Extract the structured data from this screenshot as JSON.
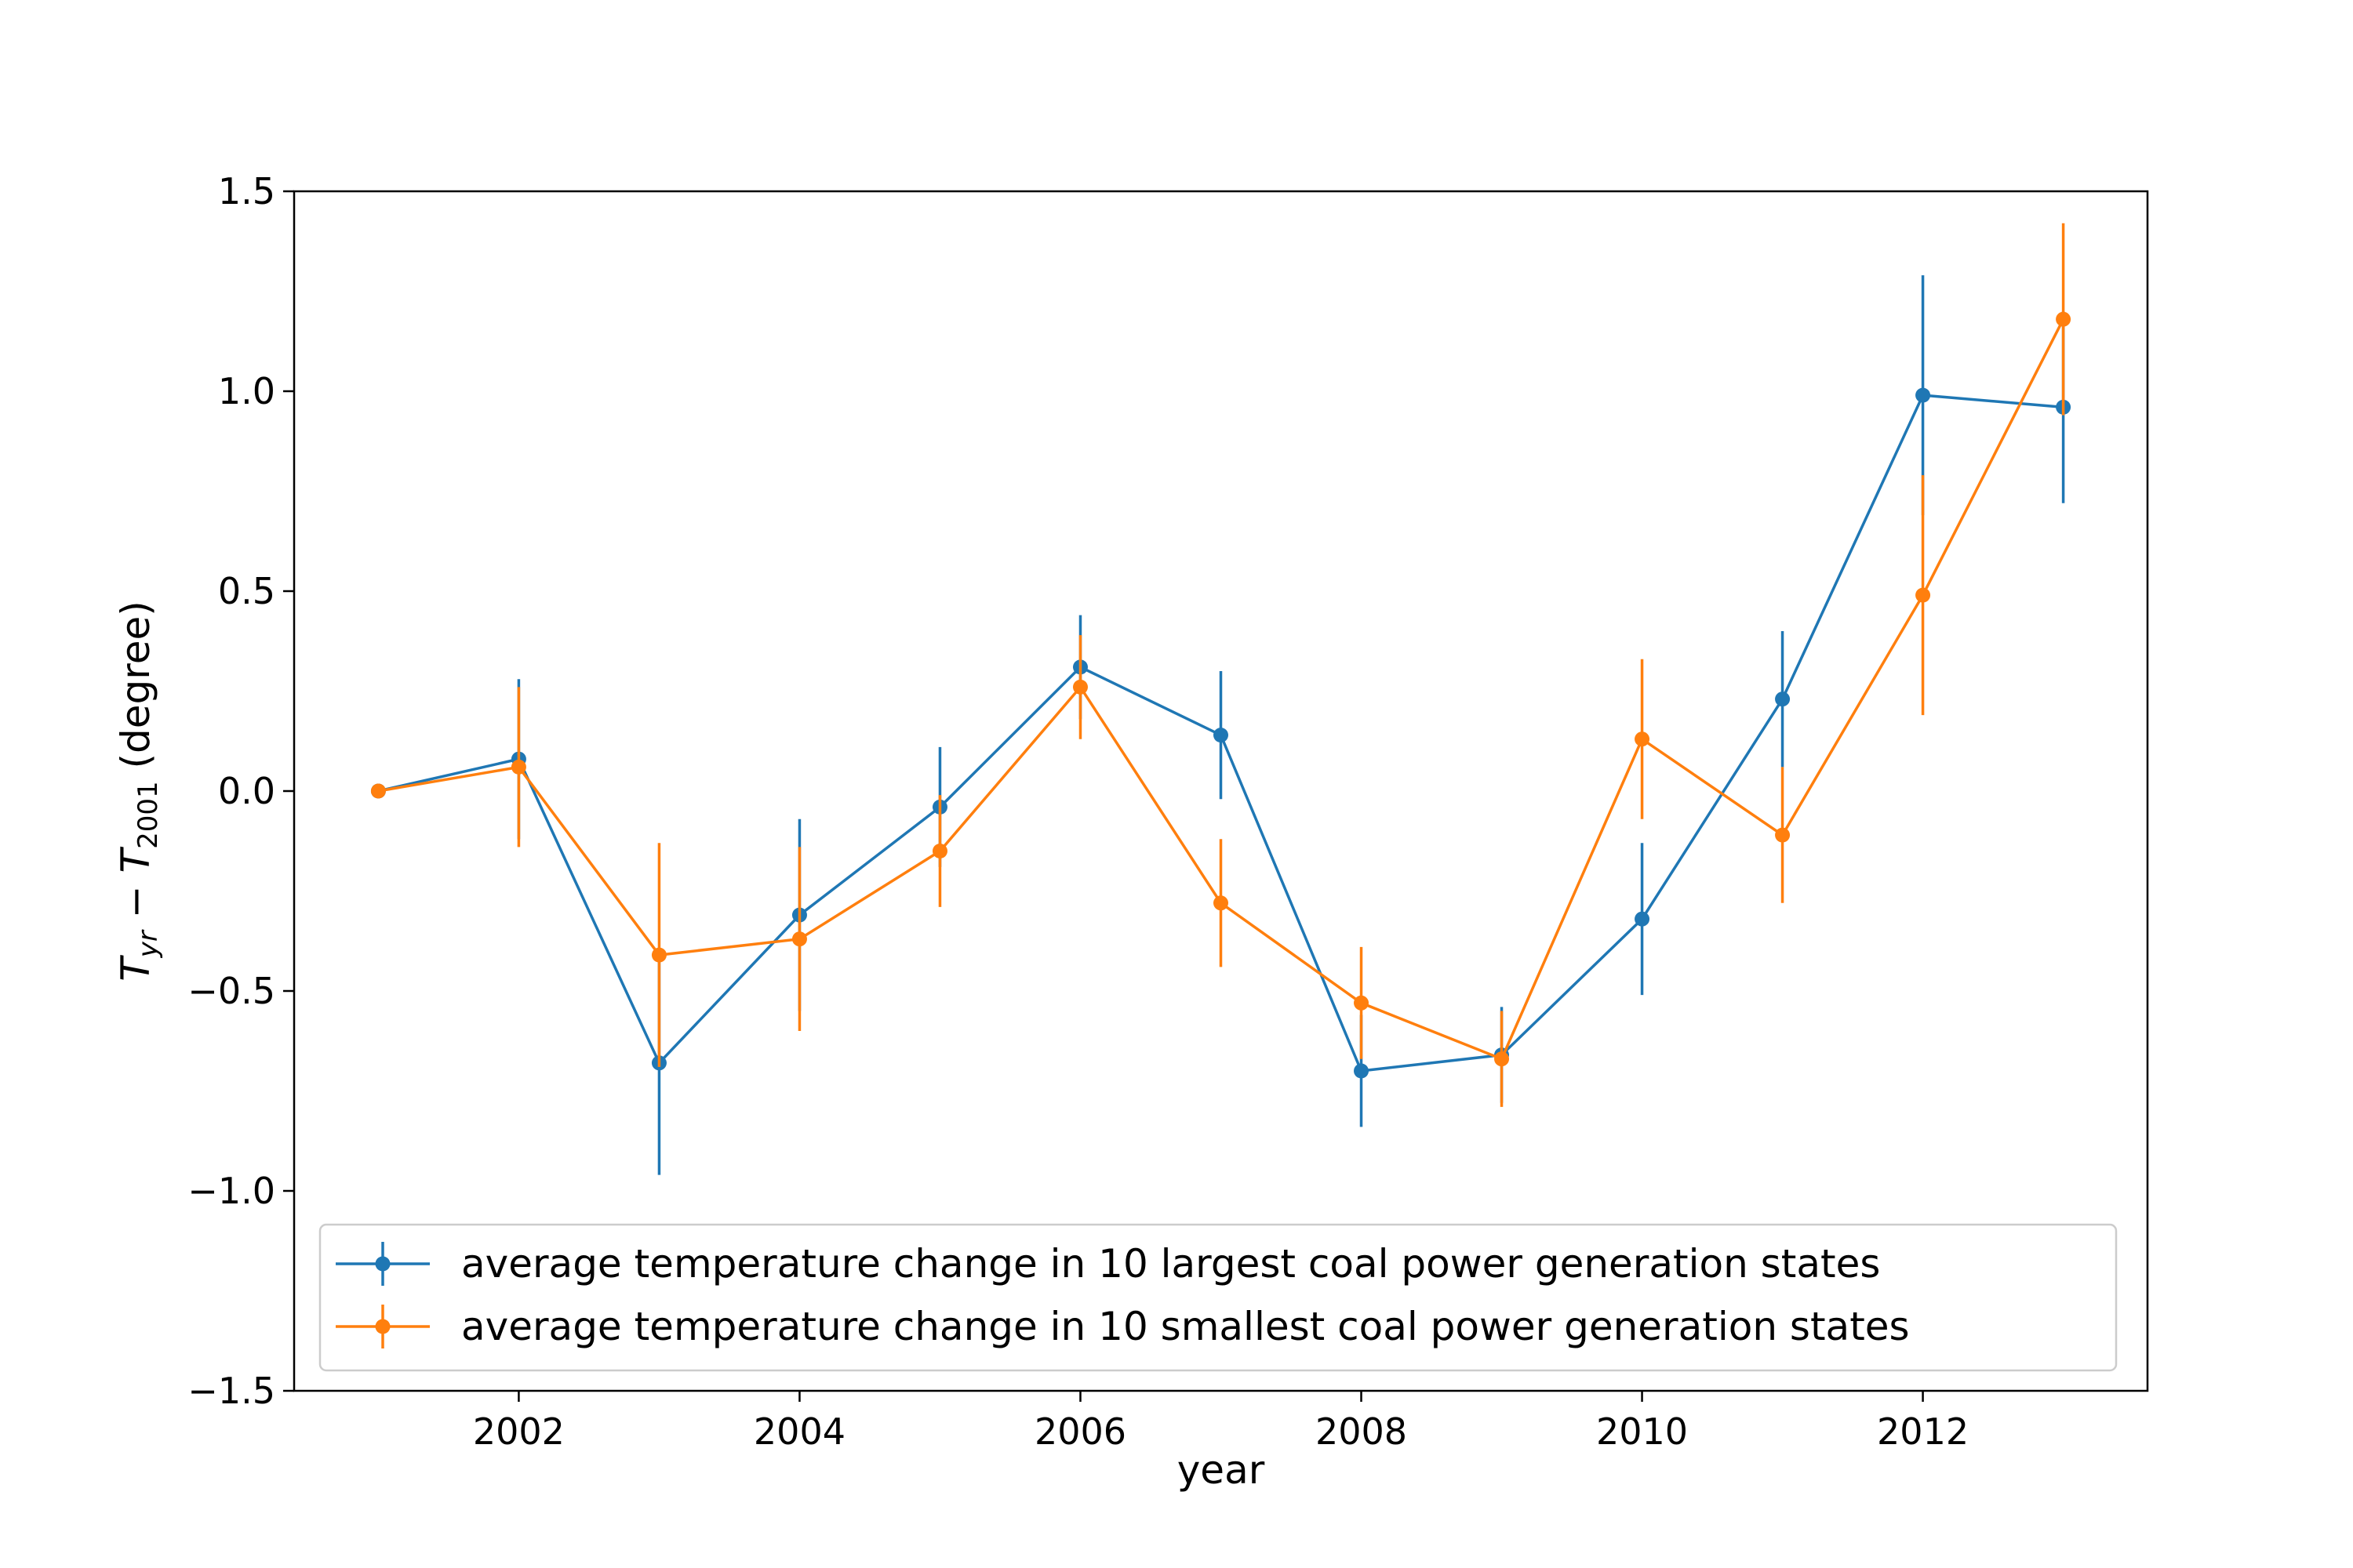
{
  "chart_data": {
    "type": "line",
    "xlabel": "year",
    "ylabel": {
      "prefix": "T",
      "sub1": "yr",
      "minus": " − T",
      "sub2": "2001",
      "suffix": " (degree)"
    },
    "xlim": [
      2000.4,
      2013.6
    ],
    "ylim": [
      -1.5,
      1.5
    ],
    "xticks": [
      2002,
      2004,
      2006,
      2008,
      2010,
      2012
    ],
    "yticks": [
      -1.5,
      -1.0,
      -0.5,
      0.0,
      0.5,
      1.0,
      1.5
    ],
    "ytick_labels": [
      "−1.5",
      "−1.0",
      "−0.5",
      "0.0",
      "0.5",
      "1.0",
      "1.5"
    ],
    "grid": false,
    "legend_position": "lower center",
    "x": [
      2001,
      2002,
      2003,
      2004,
      2005,
      2006,
      2007,
      2008,
      2009,
      2010,
      2011,
      2012,
      2013
    ],
    "series": [
      {
        "name": "average temperature change in 10 largest coal power generation states",
        "color": "#1f77b4",
        "values": [
          0.0,
          0.08,
          -0.68,
          -0.31,
          -0.04,
          0.31,
          0.14,
          -0.7,
          -0.66,
          -0.32,
          0.23,
          0.99,
          0.96
        ],
        "errors": [
          0.0,
          0.2,
          0.28,
          0.24,
          0.15,
          0.13,
          0.16,
          0.14,
          0.12,
          0.19,
          0.17,
          0.3,
          0.24
        ]
      },
      {
        "name": "average temperature change in 10 smallest coal power generation states",
        "color": "#ff7f0e",
        "values": [
          0.0,
          0.06,
          -0.41,
          -0.37,
          -0.15,
          0.26,
          -0.28,
          -0.53,
          -0.67,
          0.13,
          -0.11,
          0.49,
          1.18
        ],
        "errors": [
          0.0,
          0.2,
          0.28,
          0.23,
          0.14,
          0.13,
          0.16,
          0.14,
          0.12,
          0.2,
          0.17,
          0.3,
          0.24
        ]
      }
    ]
  }
}
